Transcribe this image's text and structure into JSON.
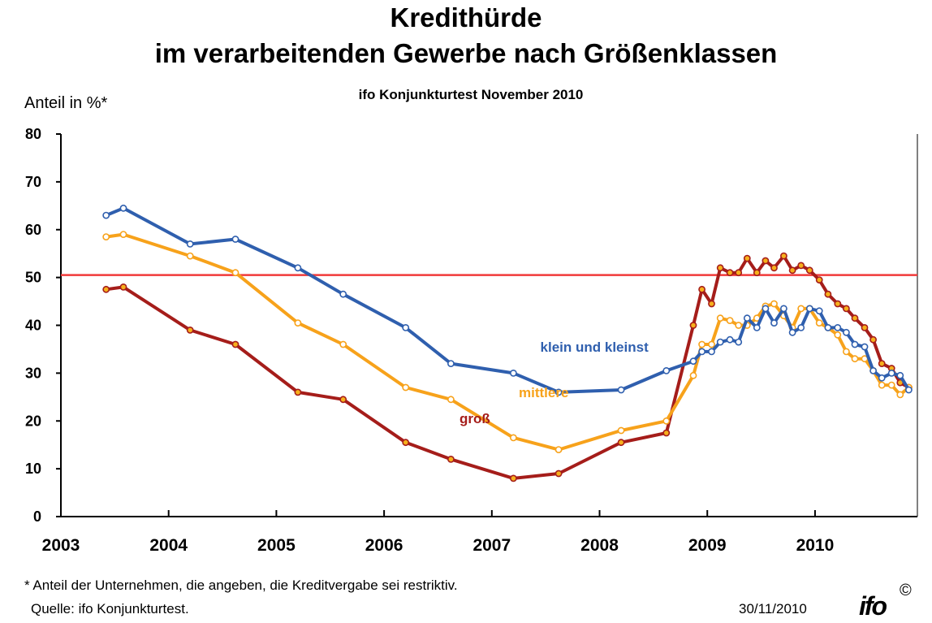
{
  "title_line1": "Kredithürde",
  "title_line2": "im verarbeitenden Gewerbe nach Größenklassen",
  "subtitle": "ifo Konjunkturtest November 2010",
  "footnote": "* Anteil der Unternehmen, die angeben, die Kreditvergabe sei restriktiv.",
  "source": "Quelle: ifo Konjunkturtest.",
  "date": "30/11/2010",
  "logo_text": "ifo",
  "copyright": "©",
  "chart_data": {
    "type": "line",
    "ylabel": "Anteil in %*",
    "ylim": [
      0,
      80
    ],
    "yticks": [
      "0",
      "10",
      "20",
      "30",
      "40",
      "50",
      "60",
      "70",
      "80"
    ],
    "xlim": [
      2003.0,
      2010.95
    ],
    "xticks": [
      "2003",
      "2004",
      "2005",
      "2006",
      "2007",
      "2008",
      "2009",
      "2010"
    ],
    "grid": false,
    "reference_line": {
      "y": 50.5,
      "color": "#f03a3a"
    },
    "series": [
      {
        "name": "klein und kleinst",
        "color": "#2f5fae",
        "marker_fill": "#ffffff",
        "points": [
          [
            2003.42,
            63
          ],
          [
            2003.58,
            64.5
          ],
          [
            2004.2,
            57
          ],
          [
            2004.62,
            58
          ],
          [
            2005.2,
            52
          ],
          [
            2005.62,
            46.5
          ],
          [
            2006.2,
            39.5
          ],
          [
            2006.62,
            32
          ],
          [
            2007.2,
            30
          ],
          [
            2007.62,
            26
          ],
          [
            2008.2,
            26.5
          ],
          [
            2008.62,
            30.5
          ],
          [
            2008.87,
            32.5
          ],
          [
            2008.95,
            34.5
          ],
          [
            2009.04,
            34.5
          ],
          [
            2009.12,
            36.5
          ],
          [
            2009.21,
            37
          ],
          [
            2009.29,
            36.5
          ],
          [
            2009.37,
            41.5
          ],
          [
            2009.46,
            39.5
          ],
          [
            2009.54,
            43.5
          ],
          [
            2009.62,
            40.5
          ],
          [
            2009.71,
            43.5
          ],
          [
            2009.79,
            38.5
          ],
          [
            2009.87,
            39.5
          ],
          [
            2009.95,
            43.5
          ],
          [
            2010.04,
            43
          ],
          [
            2010.12,
            39.5
          ],
          [
            2010.21,
            39.5
          ],
          [
            2010.29,
            38.5
          ],
          [
            2010.37,
            36
          ],
          [
            2010.46,
            35.5
          ],
          [
            2010.54,
            30.5
          ],
          [
            2010.62,
            29
          ],
          [
            2010.71,
            30
          ],
          [
            2010.79,
            29.5
          ],
          [
            2010.87,
            26.5
          ]
        ]
      },
      {
        "name": "mittlere",
        "color": "#f7a21b",
        "marker_fill": "#ffffff",
        "points": [
          [
            2003.42,
            58.5
          ],
          [
            2003.58,
            59
          ],
          [
            2004.2,
            54.5
          ],
          [
            2004.62,
            51
          ],
          [
            2005.2,
            40.5
          ],
          [
            2005.62,
            36
          ],
          [
            2006.2,
            27
          ],
          [
            2006.62,
            24.5
          ],
          [
            2007.2,
            16.5
          ],
          [
            2007.62,
            14
          ],
          [
            2008.2,
            18
          ],
          [
            2008.62,
            20
          ],
          [
            2008.87,
            29.5
          ],
          [
            2008.95,
            36
          ],
          [
            2009.04,
            36
          ],
          [
            2009.12,
            41.5
          ],
          [
            2009.21,
            41
          ],
          [
            2009.29,
            40
          ],
          [
            2009.37,
            40
          ],
          [
            2009.46,
            41.5
          ],
          [
            2009.54,
            44
          ],
          [
            2009.62,
            44.5
          ],
          [
            2009.71,
            42
          ],
          [
            2009.79,
            39.5
          ],
          [
            2009.87,
            43.5
          ],
          [
            2009.95,
            43.5
          ],
          [
            2010.04,
            40.5
          ],
          [
            2010.12,
            39.5
          ],
          [
            2010.21,
            38
          ],
          [
            2010.29,
            34.5
          ],
          [
            2010.37,
            33
          ],
          [
            2010.46,
            33
          ],
          [
            2010.54,
            30.5
          ],
          [
            2010.62,
            27.5
          ],
          [
            2010.71,
            27.5
          ],
          [
            2010.79,
            25.5
          ],
          [
            2010.87,
            27
          ]
        ]
      },
      {
        "name": "groß",
        "color": "#a51d1a",
        "marker_fill": "#f6b01c",
        "points": [
          [
            2003.42,
            47.5
          ],
          [
            2003.58,
            48
          ],
          [
            2004.2,
            39
          ],
          [
            2004.62,
            36
          ],
          [
            2005.2,
            26
          ],
          [
            2005.62,
            24.5
          ],
          [
            2006.2,
            15.5
          ],
          [
            2006.62,
            12
          ],
          [
            2007.2,
            8
          ],
          [
            2007.62,
            9
          ],
          [
            2008.2,
            15.5
          ],
          [
            2008.62,
            17.5
          ],
          [
            2008.87,
            40
          ],
          [
            2008.95,
            47.5
          ],
          [
            2009.04,
            44.5
          ],
          [
            2009.12,
            52
          ],
          [
            2009.21,
            51
          ],
          [
            2009.29,
            51
          ],
          [
            2009.37,
            54
          ],
          [
            2009.46,
            51
          ],
          [
            2009.54,
            53.5
          ],
          [
            2009.62,
            52
          ],
          [
            2009.71,
            54.5
          ],
          [
            2009.79,
            51.5
          ],
          [
            2009.87,
            52.5
          ],
          [
            2009.95,
            51.5
          ],
          [
            2010.04,
            49.5
          ],
          [
            2010.12,
            46.5
          ],
          [
            2010.21,
            44.5
          ],
          [
            2010.29,
            43.5
          ],
          [
            2010.37,
            41.5
          ],
          [
            2010.46,
            39.5
          ],
          [
            2010.54,
            37
          ],
          [
            2010.62,
            32
          ],
          [
            2010.71,
            31
          ],
          [
            2010.79,
            28
          ],
          [
            2010.87,
            27
          ]
        ]
      }
    ],
    "series_labels": [
      {
        "series": 0,
        "text": "klein und kleinst",
        "x": 2007.45,
        "y": 34.5
      },
      {
        "series": 1,
        "text": "mittlere",
        "x": 2007.25,
        "y": 25
      },
      {
        "series": 2,
        "text": "groß",
        "x": 2006.7,
        "y": 19.5
      }
    ]
  }
}
